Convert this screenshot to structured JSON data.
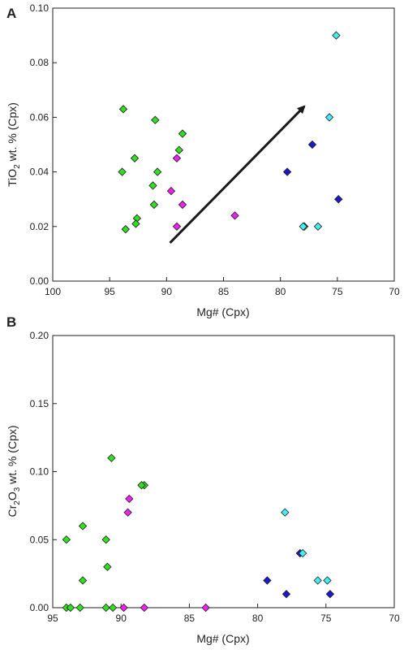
{
  "colors": {
    "green": "#33dd22",
    "magenta": "#ee22ee",
    "blue": "#1a1acc",
    "cyan": "#44eeee",
    "arrow": "#1a1a1a"
  },
  "chart_data": [
    {
      "type": "scatter",
      "panel_label": "A",
      "xlabel": "Mg# (Cpx)",
      "ylabel": "TiO2 wt. % (Cpx)",
      "ylabel_main": "TiO",
      "ylabel_sub": "2",
      "ylabel_rest": " wt. % (Cpx)",
      "xlim": [
        100,
        70
      ],
      "ylim": [
        0,
        0.1
      ],
      "x_reversed": true,
      "x_ticks": [
        100,
        95,
        90,
        85,
        80,
        75,
        70
      ],
      "y_ticks": [
        "0.00",
        "0.02",
        "0.04",
        "0.06",
        "0.08",
        "0.10"
      ],
      "grid": false,
      "arrow": {
        "from": [
          89.7,
          0.014
        ],
        "to": [
          77.9,
          0.064
        ]
      },
      "series": [
        {
          "marker": "diamond",
          "color_key": "green",
          "points": [
            [
              93.8,
              0.063
            ],
            [
              91.0,
              0.059
            ],
            [
              88.6,
              0.054
            ],
            [
              88.9,
              0.048
            ],
            [
              92.8,
              0.045
            ],
            [
              93.9,
              0.04
            ],
            [
              90.8,
              0.04
            ],
            [
              91.2,
              0.035
            ],
            [
              92.6,
              0.023
            ],
            [
              91.1,
              0.028
            ],
            [
              92.7,
              0.021
            ],
            [
              93.6,
              0.019
            ]
          ]
        },
        {
          "marker": "diamond",
          "color_key": "magenta",
          "points": [
            [
              89.1,
              0.045
            ],
            [
              89.6,
              0.033
            ],
            [
              88.6,
              0.028
            ],
            [
              89.1,
              0.02
            ],
            [
              84.0,
              0.024
            ]
          ]
        },
        {
          "marker": "diamond",
          "color_key": "blue",
          "points": [
            [
              77.2,
              0.05
            ],
            [
              79.4,
              0.04
            ],
            [
              74.9,
              0.03
            ]
          ]
        },
        {
          "marker": "diamond",
          "color_key": "cyan",
          "points": [
            [
              75.1,
              0.09
            ],
            [
              75.7,
              0.06
            ],
            [
              77.9,
              0.02
            ],
            [
              78.0,
              0.02
            ],
            [
              76.7,
              0.02
            ]
          ]
        }
      ]
    },
    {
      "type": "scatter",
      "panel_label": "B",
      "xlabel": "Mg# (Cpx)",
      "ylabel": "Cr2O3 wt. % (Cpx)",
      "ylabel_p1": "Cr",
      "ylabel_s1": "2",
      "ylabel_p2": "O",
      "ylabel_s2": "3",
      "ylabel_rest": " wt. % (Cpx)",
      "xlim": [
        95,
        70
      ],
      "ylim": [
        0,
        0.2
      ],
      "x_reversed": true,
      "x_ticks": [
        95,
        90,
        85,
        80,
        75,
        70
      ],
      "y_ticks": [
        "0.00",
        "0.05",
        "0.10",
        "0.15",
        "0.20"
      ],
      "grid": false,
      "series": [
        {
          "marker": "diamond",
          "color_key": "green",
          "points": [
            [
              90.7,
              0.11
            ],
            [
              88.3,
              0.09
            ],
            [
              88.5,
              0.09
            ],
            [
              92.8,
              0.06
            ],
            [
              94.0,
              0.05
            ],
            [
              91.1,
              0.05
            ],
            [
              91.0,
              0.03
            ],
            [
              92.8,
              0.02
            ],
            [
              94.0,
              0.0
            ],
            [
              93.7,
              0.0
            ],
            [
              93.0,
              0.0
            ],
            [
              91.1,
              0.0
            ],
            [
              90.6,
              0.0
            ]
          ]
        },
        {
          "marker": "diamond",
          "color_key": "magenta",
          "points": [
            [
              89.4,
              0.08
            ],
            [
              89.5,
              0.07
            ],
            [
              89.8,
              0.0
            ],
            [
              88.3,
              0.0
            ],
            [
              83.8,
              0.0
            ]
          ]
        },
        {
          "marker": "diamond",
          "color_key": "blue",
          "points": [
            [
              79.3,
              0.02
            ],
            [
              76.9,
              0.04
            ],
            [
              77.9,
              0.01
            ],
            [
              74.7,
              0.01
            ]
          ]
        },
        {
          "marker": "diamond",
          "color_key": "cyan",
          "points": [
            [
              78.0,
              0.07
            ],
            [
              76.7,
              0.04
            ],
            [
              75.6,
              0.02
            ],
            [
              74.9,
              0.02
            ]
          ]
        }
      ]
    }
  ]
}
